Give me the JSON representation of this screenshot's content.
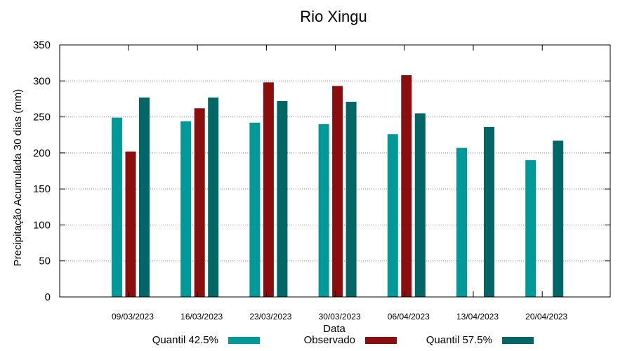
{
  "chart_data": {
    "type": "bar",
    "title": "Rio Xingu",
    "xlabel": "Data",
    "ylabel": "Precipitação Acumulada 30 dias (mm)",
    "ylim": [
      0,
      350
    ],
    "yticks": [
      0,
      50,
      100,
      150,
      200,
      250,
      300,
      350
    ],
    "grid": "horizontal dotted",
    "legend_position": "bottom",
    "categories": [
      "09/03/2023",
      "16/03/2023",
      "23/03/2023",
      "30/03/2023",
      "06/04/2023",
      "13/04/2023",
      "20/04/2023"
    ],
    "series": [
      {
        "name": "Quantil 42.5%",
        "color": "#009999",
        "values": [
          249,
          244,
          242,
          240,
          226,
          207,
          190
        ]
      },
      {
        "name": "Observado",
        "color": "#8b0e0e",
        "values": [
          202,
          262,
          298,
          293,
          308,
          null,
          null
        ]
      },
      {
        "name": "Quantil 57.5%",
        "color": "#006666",
        "values": [
          277,
          277,
          272,
          271,
          255,
          236,
          217
        ]
      }
    ]
  }
}
